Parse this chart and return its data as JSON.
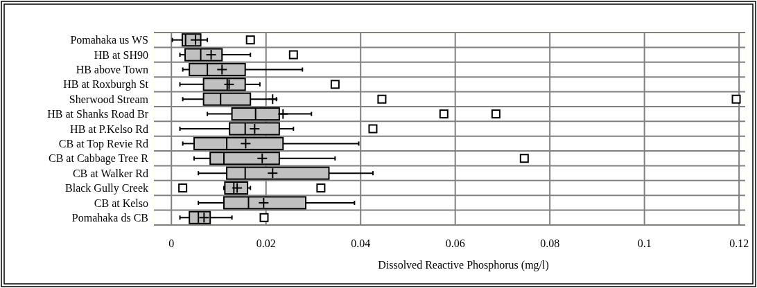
{
  "chart_data": {
    "type": "box",
    "orientation": "horizontal",
    "xlabel": "Dissolved Reactive Phosphorus (mg/l)",
    "categories": [
      "Pomahaka us WS",
      "HB at SH90",
      "HB above Town",
      "HB at Roxburgh St",
      "Sherwood Stream",
      "HB at Shanks Road Br",
      "HB at P.Kelso Rd",
      "CB at Top Revie Rd",
      "CB at Cabbage Tree R",
      "CB at Walker Rd",
      "Black Gully Creek",
      "CB at Kelso",
      "Pomahaka ds CB"
    ],
    "color": "#c0c0c0",
    "grid": true,
    "marker": "square",
    "xlim": [
      -0.0037,
      0.1213
    ],
    "xticks": [
      0,
      0.02,
      0.04,
      0.06,
      0.08,
      0.1,
      0.12
    ],
    "boxes": [
      {
        "low": 0.0002,
        "q1": 0.0023,
        "median": 0.003,
        "q3": 0.0062,
        "high": 0.0076,
        "mean": 0.0051,
        "outliers": [
          0.0167
        ]
      },
      {
        "low": 0.0018,
        "q1": 0.0029,
        "median": 0.0062,
        "q3": 0.0107,
        "high": 0.0167,
        "mean": 0.0084,
        "outliers": [
          0.0258
        ]
      },
      {
        "low": 0.0024,
        "q1": 0.0038,
        "median": 0.0076,
        "q3": 0.0156,
        "high": 0.0277,
        "mean": 0.0107
      },
      {
        "low": 0.0018,
        "q1": 0.0068,
        "median": 0.0118,
        "q3": 0.0156,
        "high": 0.0187,
        "mean": 0.0122,
        "outliers": [
          0.0346
        ]
      },
      {
        "low": 0.0024,
        "q1": 0.0068,
        "median": 0.0104,
        "q3": 0.0167,
        "high": 0.0222,
        "mean": 0.0214,
        "outliers": [
          0.0445,
          0.1194
        ]
      },
      {
        "low": 0.0076,
        "q1": 0.0128,
        "median": 0.0178,
        "q3": 0.0228,
        "high": 0.0296,
        "mean": 0.0236,
        "outliers": [
          0.0576,
          0.0686
        ]
      },
      {
        "low": 0.0018,
        "q1": 0.0123,
        "median": 0.0156,
        "q3": 0.0228,
        "high": 0.0258,
        "mean": 0.0176,
        "outliers": [
          0.0426
        ]
      },
      {
        "low": 0.0024,
        "q1": 0.0048,
        "median": 0.0117,
        "q3": 0.0236,
        "high": 0.0396,
        "mean": 0.0157
      },
      {
        "low": 0.0048,
        "q1": 0.0082,
        "median": 0.0111,
        "q3": 0.0228,
        "high": 0.0346,
        "mean": 0.0192,
        "outliers": [
          0.0746
        ]
      },
      {
        "low": 0.0057,
        "q1": 0.0117,
        "median": 0.0156,
        "q3": 0.0333,
        "high": 0.0426,
        "mean": 0.0214
      },
      {
        "low": 0.0111,
        "q1": 0.0113,
        "median": 0.0132,
        "q3": 0.0161,
        "high": 0.0167,
        "mean": 0.0139,
        "outliers": [
          0.0024,
          0.0316
        ]
      },
      {
        "low": 0.0057,
        "q1": 0.0111,
        "median": 0.0163,
        "q3": 0.0284,
        "high": 0.0387,
        "mean": 0.0195
      },
      {
        "low": 0.0018,
        "q1": 0.0038,
        "median": 0.0057,
        "q3": 0.0082,
        "high": 0.0128,
        "mean": 0.0069,
        "outliers": [
          0.0196
        ]
      }
    ]
  }
}
